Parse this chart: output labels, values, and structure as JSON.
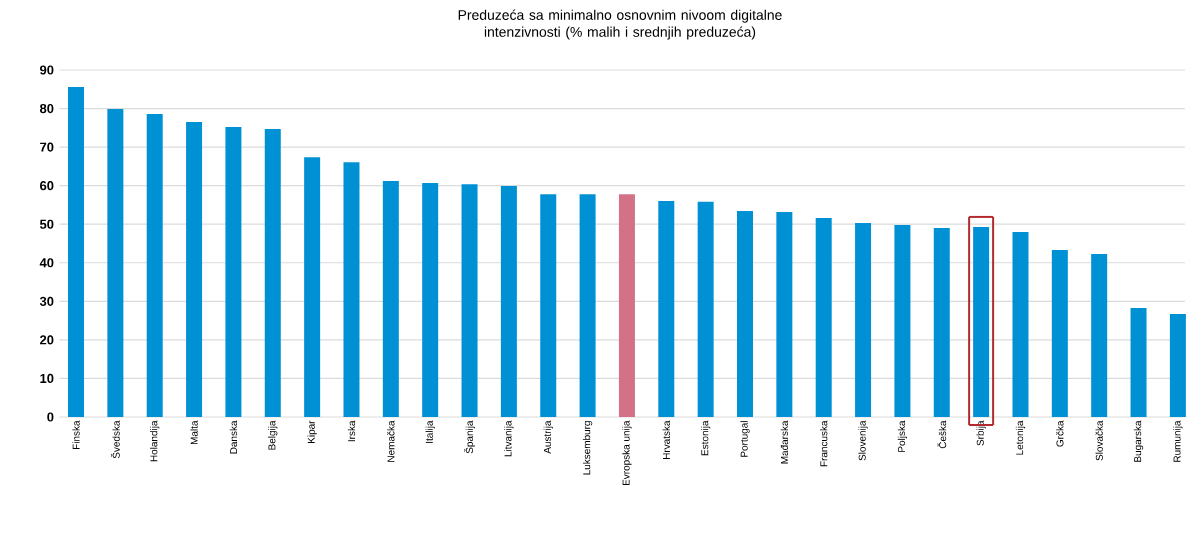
{
  "chart_data": {
    "type": "bar",
    "title": "Preduzeća sa minimalno osnovnim nivoom digitalne intenzivnosti (% malih i srednjih preduzeća)",
    "categories": [
      "Finska",
      "Švedska",
      "Holandija",
      "Malta",
      "Danska",
      "Belgija",
      "Kipar",
      "Irska",
      "Nemačka",
      "Italija",
      "Španija",
      "Litvanija",
      "Austrija",
      "Luksemburg",
      "Evropska unija",
      "Hrvatska",
      "Estonija",
      "Portugal",
      "Mađarska",
      "Francuska",
      "Slovenija",
      "Poljska",
      "Češka",
      "Srbija",
      "Letonija",
      "Grčka",
      "Slovačka",
      "Bugarska",
      "Rumunija"
    ],
    "values": [
      85.6,
      79.9,
      78.6,
      76.5,
      75.2,
      74.7,
      67.4,
      66.1,
      61.2,
      60.7,
      60.4,
      59.9,
      57.8,
      57.8,
      57.8,
      56.0,
      55.8,
      53.4,
      53.2,
      51.6,
      50.3,
      49.8,
      49.0,
      49.3,
      48.0,
      43.3,
      42.3,
      28.3,
      26.7
    ],
    "colors": [
      "#0091d5",
      "#0091d5",
      "#0091d5",
      "#0091d5",
      "#0091d5",
      "#0091d5",
      "#0091d5",
      "#0091d5",
      "#0091d5",
      "#0091d5",
      "#0091d5",
      "#0091d5",
      "#0091d5",
      "#0091d5",
      "#d37287",
      "#0091d5",
      "#0091d5",
      "#0091d5",
      "#0091d5",
      "#0091d5",
      "#0091d5",
      "#0091d5",
      "#0091d5",
      "#0091d5",
      "#0091d5",
      "#0091d5",
      "#0091d5",
      "#0091d5",
      "#0091d5"
    ],
    "ylim": [
      0,
      90
    ],
    "yticks": [
      0,
      10,
      20,
      30,
      40,
      50,
      60,
      70,
      80,
      90
    ],
    "grid": "y"
  }
}
